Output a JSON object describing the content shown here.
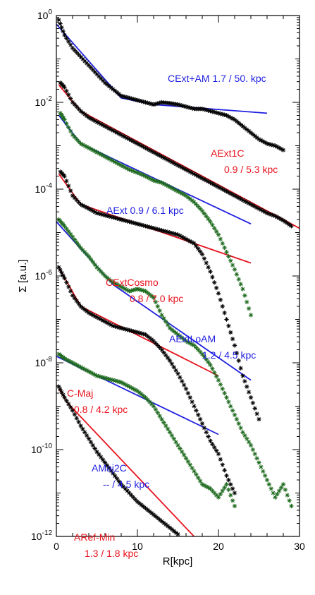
{
  "chart_data": {
    "type": "line",
    "title": "",
    "xlabel": "R[kpc]",
    "ylabel": "Σ [a.u.]",
    "xlim": [
      0,
      30
    ],
    "ylim_log10": [
      -12,
      0
    ],
    "yscale": "log",
    "x_ticks": [
      "0",
      "10",
      "20",
      "30"
    ],
    "y_ticks": [
      {
        "base": "10",
        "exp": "0"
      },
      {
        "base": "10",
        "exp": "-2"
      },
      {
        "base": "10",
        "exp": "-4"
      },
      {
        "base": "10",
        "exp": "-6"
      },
      {
        "base": "10",
        "exp": "-8"
      },
      {
        "base": "10",
        "exp": "-10"
      },
      {
        "base": "10",
        "exp": "-12"
      }
    ],
    "colors": {
      "black": "#000000",
      "red": "#e8141e",
      "blue": "#1f1fe0",
      "green": "#1f6b1f"
    },
    "profiles": [
      {
        "name": "CExt+AM",
        "values": "1.7 / 50. kpc",
        "text_color": "#1f1fe0",
        "marker_color": "#000000",
        "label_line1": "CExt+AM 1.7 / 50. kpc",
        "label_line2": "",
        "points": [
          [
            0.3,
            -0.1
          ],
          [
            1,
            -0.45
          ],
          [
            2,
            -0.75
          ],
          [
            3,
            -0.95
          ],
          [
            4,
            -1.15
          ],
          [
            5,
            -1.35
          ],
          [
            6,
            -1.55
          ],
          [
            7,
            -1.7
          ],
          [
            8,
            -1.85
          ],
          [
            9,
            -1.9
          ],
          [
            10,
            -1.95
          ],
          [
            11,
            -2.0
          ],
          [
            12,
            -2.05
          ],
          [
            13,
            -2.0
          ],
          [
            14,
            -2.02
          ],
          [
            15,
            -2.05
          ],
          [
            16,
            -2.1
          ],
          [
            17,
            -2.15
          ],
          [
            18,
            -2.15
          ],
          [
            19,
            -2.2
          ],
          [
            20,
            -2.25
          ],
          [
            21,
            -2.3
          ],
          [
            22,
            -2.4
          ],
          [
            23,
            -2.55
          ],
          [
            24,
            -2.7
          ],
          [
            25,
            -2.85
          ],
          [
            26,
            -2.95
          ],
          [
            27,
            -3.0
          ],
          [
            28,
            -3.1
          ]
        ],
        "fit_color": "#1f1fe0",
        "fit": [
          [
            0,
            -0.2
          ],
          [
            8,
            -1.9
          ],
          [
            12,
            -2.05
          ],
          [
            26,
            -2.25
          ]
        ]
      },
      {
        "name": "AExt1C",
        "values": "0.9 / 5.3 kpc",
        "text_color": "#e8141e",
        "marker_color": "#000000",
        "label_line1": "AExt1C",
        "label_line2": "0.9 / 5.3 kpc",
        "points": [
          [
            0.5,
            -1.55
          ],
          [
            1,
            -1.65
          ],
          [
            2,
            -2.0
          ],
          [
            3,
            -2.2
          ],
          [
            4,
            -2.35
          ],
          [
            5,
            -2.45
          ],
          [
            6,
            -2.55
          ],
          [
            7,
            -2.65
          ],
          [
            8,
            -2.75
          ],
          [
            9,
            -2.85
          ],
          [
            10,
            -2.95
          ],
          [
            11,
            -3.05
          ],
          [
            12,
            -3.15
          ],
          [
            13,
            -3.25
          ],
          [
            14,
            -3.35
          ],
          [
            15,
            -3.45
          ],
          [
            16,
            -3.55
          ],
          [
            17,
            -3.65
          ],
          [
            18,
            -3.75
          ],
          [
            19,
            -3.85
          ],
          [
            20,
            -3.95
          ],
          [
            21,
            -4.05
          ],
          [
            22,
            -4.15
          ],
          [
            23,
            -4.25
          ],
          [
            24,
            -4.35
          ],
          [
            25,
            -4.45
          ],
          [
            26,
            -4.55
          ],
          [
            27,
            -4.62
          ],
          [
            28,
            -4.72
          ],
          [
            29,
            -4.85
          ]
        ],
        "fit_color": "#e8141e",
        "fit": [
          [
            0.3,
            -1.6
          ],
          [
            3,
            -2.2
          ],
          [
            30,
            -4.9
          ]
        ]
      },
      {
        "name": "AExt",
        "values": "0.9 / 6.1 kpc",
        "text_color": "#1f1fe0",
        "marker_color": "#1f6b1f",
        "label_line1": "AExt 0.9 / 6.1 kpc",
        "label_line2": "",
        "points": [
          [
            0.5,
            -2.25
          ],
          [
            1,
            -2.4
          ],
          [
            2,
            -2.75
          ],
          [
            3,
            -2.95
          ],
          [
            4,
            -3.05
          ],
          [
            5,
            -3.15
          ],
          [
            6,
            -3.25
          ],
          [
            7,
            -3.35
          ],
          [
            8,
            -3.45
          ],
          [
            9,
            -3.55
          ],
          [
            10,
            -3.62
          ],
          [
            11,
            -3.7
          ],
          [
            12,
            -3.8
          ],
          [
            13,
            -3.85
          ],
          [
            14,
            -3.95
          ],
          [
            15,
            -4.05
          ],
          [
            16,
            -4.15
          ],
          [
            17,
            -4.3
          ],
          [
            18,
            -4.5
          ],
          [
            19,
            -4.75
          ],
          [
            20,
            -5.05
          ],
          [
            21,
            -5.45
          ],
          [
            22,
            -5.85
          ],
          [
            23,
            -6.3
          ],
          [
            24,
            -6.9
          ]
        ],
        "fit_color": "#1f1fe0",
        "fit": [
          [
            0.3,
            -2.3
          ],
          [
            3,
            -2.95
          ],
          [
            24,
            -4.8
          ]
        ]
      },
      {
        "name": "CExtCosmo",
        "values": "0.8 / 7.0 kpc",
        "text_color": "#e8141e",
        "marker_color": "#000000",
        "label_line1": "CExtCosmo",
        "label_line2": "0.8 / 7.0 kpc",
        "points": [
          [
            0.5,
            -3.6
          ],
          [
            1,
            -3.7
          ],
          [
            2,
            -4.15
          ],
          [
            3,
            -4.35
          ],
          [
            4,
            -4.45
          ],
          [
            5,
            -4.55
          ],
          [
            6,
            -4.6
          ],
          [
            7,
            -4.65
          ],
          [
            8,
            -4.7
          ],
          [
            9,
            -4.75
          ],
          [
            10,
            -4.8
          ],
          [
            11,
            -4.85
          ],
          [
            12,
            -4.9
          ],
          [
            13,
            -4.95
          ],
          [
            14,
            -5.0
          ],
          [
            15,
            -5.05
          ],
          [
            16,
            -5.15
          ],
          [
            17,
            -5.25
          ],
          [
            18,
            -5.5
          ],
          [
            19,
            -5.9
          ],
          [
            20,
            -6.4
          ],
          [
            21,
            -7.0
          ],
          [
            22,
            -7.6
          ],
          [
            23,
            -8.3
          ],
          [
            24,
            -8.8
          ],
          [
            25,
            -9.3
          ]
        ],
        "fit_color": "#e8141e",
        "fit": [
          [
            0.3,
            -3.65
          ],
          [
            3,
            -4.35
          ],
          [
            24,
            -5.7
          ]
        ]
      },
      {
        "name": "AExtLoAM",
        "values": "1.2 / 4.5 kpc",
        "text_color": "#1f1fe0",
        "marker_color": "#1f6b1f",
        "label_line1": "AExtLoAM",
        "label_line2": "1.2 / 4.5 kpc",
        "points": [
          [
            0.3,
            -4.7
          ],
          [
            1,
            -4.85
          ],
          [
            2,
            -5.1
          ],
          [
            3,
            -5.35
          ],
          [
            4,
            -5.55
          ],
          [
            5,
            -5.8
          ],
          [
            6,
            -6.0
          ],
          [
            7,
            -6.15
          ],
          [
            8,
            -6.25
          ],
          [
            9,
            -6.35
          ],
          [
            10,
            -6.3
          ],
          [
            11,
            -6.35
          ],
          [
            12,
            -6.5
          ],
          [
            13,
            -6.9
          ],
          [
            14,
            -7.2
          ],
          [
            15,
            -7.35
          ],
          [
            16,
            -7.5
          ],
          [
            17,
            -7.6
          ],
          [
            18,
            -7.8
          ],
          [
            19,
            -8.05
          ],
          [
            20,
            -8.4
          ],
          [
            21,
            -8.8
          ],
          [
            22,
            -9.2
          ],
          [
            23,
            -9.6
          ],
          [
            24,
            -9.9
          ],
          [
            25,
            -10.3
          ],
          [
            26,
            -10.7
          ],
          [
            27,
            -11.1
          ],
          [
            28,
            -10.8
          ],
          [
            29,
            -11.3
          ]
        ],
        "fit_color": "#1f1fe0",
        "fit": [
          [
            0,
            -4.75
          ],
          [
            7,
            -6.2
          ],
          [
            24,
            -8.4
          ]
        ]
      },
      {
        "name": "C-Maj",
        "values": "0.8 / 4.2 kpc",
        "text_color": "#e8141e",
        "marker_color": "#000000",
        "label_line1": "C-Maj",
        "label_line2": "0.8 / 4.2 kpc",
        "points": [
          [
            0.3,
            -5.8
          ],
          [
            1,
            -6.05
          ],
          [
            2,
            -6.45
          ],
          [
            3,
            -6.7
          ],
          [
            4,
            -6.85
          ],
          [
            5,
            -6.95
          ],
          [
            6,
            -7.05
          ],
          [
            7,
            -7.15
          ],
          [
            8,
            -7.2
          ],
          [
            9,
            -7.25
          ],
          [
            10,
            -7.3
          ],
          [
            11,
            -7.35
          ],
          [
            12,
            -7.5
          ],
          [
            13,
            -7.7
          ],
          [
            14,
            -7.95
          ],
          [
            15,
            -8.25
          ],
          [
            16,
            -8.6
          ],
          [
            17,
            -9.0
          ],
          [
            18,
            -9.4
          ],
          [
            19,
            -9.8
          ],
          [
            20,
            -10.1
          ],
          [
            21,
            -10.6
          ],
          [
            22,
            -11.0
          ]
        ],
        "fit_color": "#e8141e",
        "fit": [
          [
            0.3,
            -5.8
          ],
          [
            3,
            -6.7
          ],
          [
            20,
            -8.3
          ]
        ]
      },
      {
        "name": "AMaj2C",
        "values": "-- / 4.5 kpc",
        "text_color": "#1f1fe0",
        "marker_color": "#1f6b1f",
        "label_line1": "AMaj2C",
        "label_line2": "-- / 4.5 kpc",
        "points": [
          [
            0.3,
            -7.8
          ],
          [
            1,
            -7.9
          ],
          [
            2,
            -8.0
          ],
          [
            3,
            -8.1
          ],
          [
            4,
            -8.2
          ],
          [
            5,
            -8.3
          ],
          [
            6,
            -8.35
          ],
          [
            7,
            -8.4
          ],
          [
            8,
            -8.45
          ],
          [
            9,
            -8.55
          ],
          [
            10,
            -8.65
          ],
          [
            11,
            -8.8
          ],
          [
            12,
            -9.0
          ],
          [
            13,
            -9.3
          ],
          [
            14,
            -9.6
          ],
          [
            15,
            -9.9
          ],
          [
            16,
            -10.2
          ],
          [
            17,
            -10.5
          ],
          [
            18,
            -10.8
          ],
          [
            19,
            -10.9
          ],
          [
            20,
            -11.1
          ],
          [
            21,
            -10.8
          ],
          [
            22,
            -11.3
          ]
        ],
        "fit_color": "#1f1fe0",
        "fit": [
          [
            0,
            -7.85
          ],
          [
            20,
            -9.65
          ]
        ]
      },
      {
        "name": "ARef-Min",
        "values": "1.3 / 1.8 kpc",
        "text_color": "#e8141e",
        "marker_color": "#000000",
        "label_line1": "ARef-Min",
        "label_line2": "1.3 / 1.8 kpc",
        "points": [
          [
            0.3,
            -8.55
          ],
          [
            1,
            -8.8
          ],
          [
            2,
            -9.1
          ],
          [
            3,
            -9.45
          ],
          [
            4,
            -9.75
          ],
          [
            5,
            -10.05
          ],
          [
            6,
            -10.3
          ],
          [
            7,
            -10.55
          ],
          [
            8,
            -10.8
          ],
          [
            9,
            -11.0
          ],
          [
            10,
            -11.2
          ],
          [
            11,
            -11.35
          ],
          [
            12,
            -11.5
          ],
          [
            13,
            -11.65
          ],
          [
            14,
            -11.8
          ],
          [
            15,
            -11.95
          ]
        ],
        "fit_color": "#e8141e",
        "fit": [
          [
            0.3,
            -8.6
          ],
          [
            1.5,
            -8.95
          ],
          [
            18,
            -12.2
          ]
        ]
      }
    ]
  }
}
